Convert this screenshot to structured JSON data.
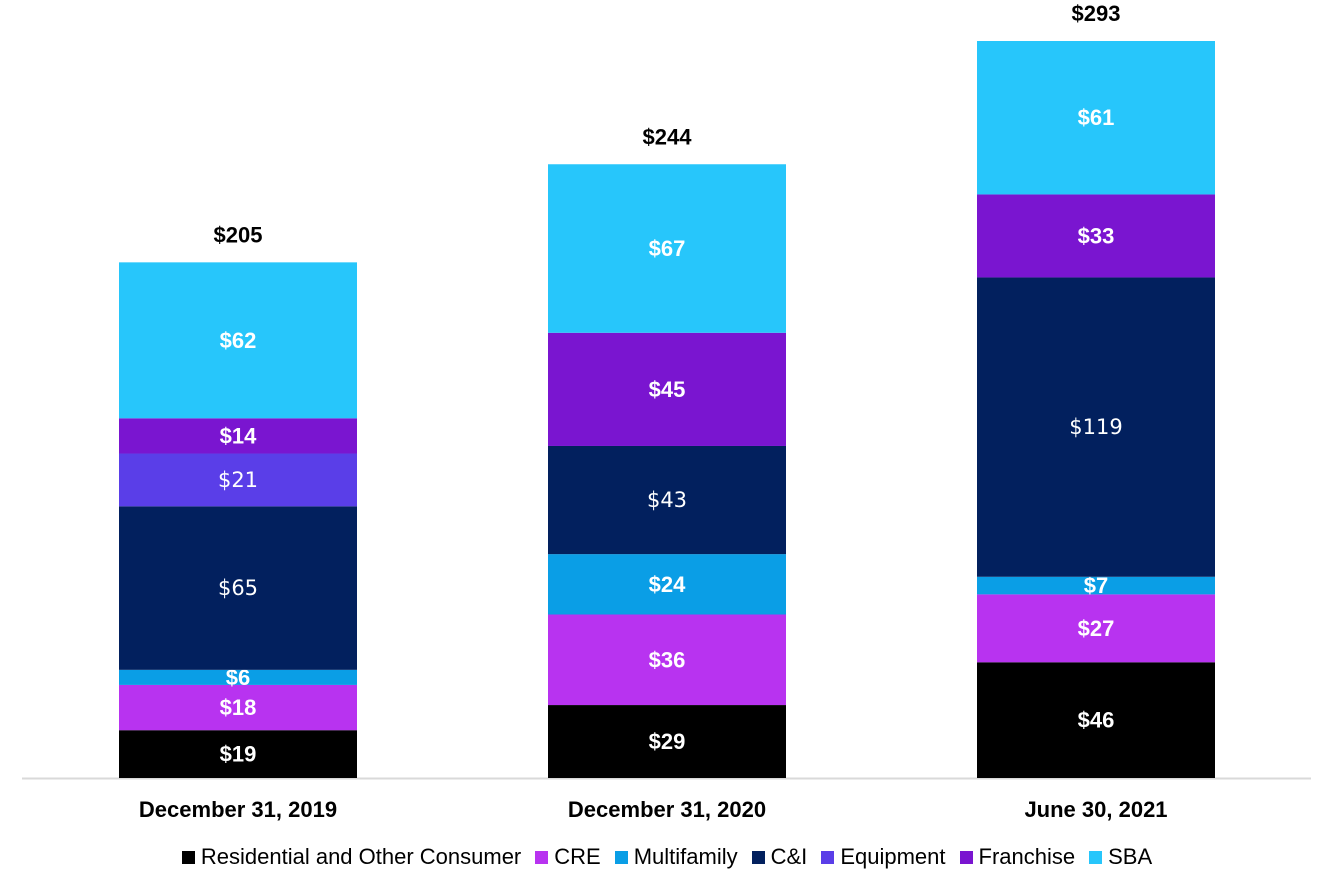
{
  "chart_data": {
    "type": "bar",
    "stacked": true,
    "categories": [
      "December 31, 2019",
      "December 31, 2020",
      "June 30, 2021"
    ],
    "totals": [
      "$205",
      "$244",
      "$293"
    ],
    "series": [
      {
        "name": "Residential and Other Consumer",
        "color": "#000000",
        "values": [
          19,
          29,
          46
        ],
        "labels": [
          "$19",
          "$29",
          "$46"
        ]
      },
      {
        "name": "CRE",
        "color": "#B833F0",
        "values": [
          18,
          36,
          27
        ],
        "labels": [
          "$18",
          "$36",
          "$27"
        ]
      },
      {
        "name": "Multifamily",
        "color": "#0A9EE6",
        "values": [
          6,
          24,
          7
        ],
        "labels": [
          "$6",
          "$24",
          "$7"
        ]
      },
      {
        "name": "C&I",
        "color": "#02205E",
        "values": [
          65,
          43,
          119
        ],
        "labels": [
          "$65",
          "$43",
          "$119"
        ]
      },
      {
        "name": "Equipment",
        "color": "#5A3EE8",
        "values": [
          21,
          0,
          0
        ],
        "labels": [
          "$21",
          "",
          ""
        ]
      },
      {
        "name": "Franchise",
        "color": "#7A15D0",
        "values": [
          14,
          45,
          33
        ],
        "labels": [
          "$14",
          "$45",
          "$33"
        ]
      },
      {
        "name": "SBA",
        "color": "#27C6FB",
        "values": [
          62,
          67,
          61
        ],
        "labels": [
          "$62",
          "$67",
          "$61"
        ]
      }
    ],
    "ylim": [
      0,
      293
    ],
    "grid": false,
    "legend_position": "bottom",
    "title": "",
    "xlabel": "",
    "ylabel": ""
  }
}
